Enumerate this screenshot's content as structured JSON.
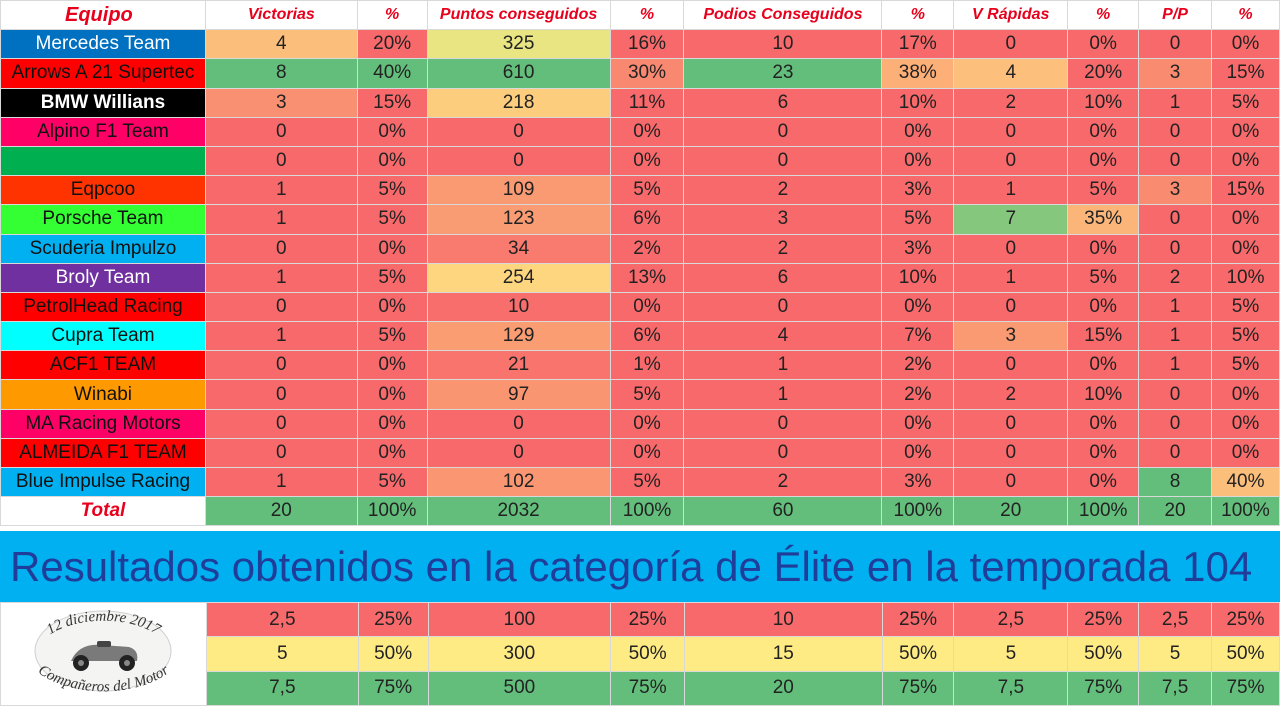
{
  "headers": [
    "Equipo",
    "Victorias",
    "%",
    "Puntos conseguidos",
    "%",
    "Podios Conseguidos",
    "%",
    "V Rápidas",
    "%",
    "P/P",
    "%"
  ],
  "colors": {
    "red": "#f8696b",
    "light_red": "#f98970",
    "salmon": "#fa9a72",
    "orange": "#fcaf77",
    "light_orange": "#fcc07c",
    "peach": "#fdcd7e",
    "yellow": "#fee382",
    "light_green": "#b5d57f",
    "green": "#63be7b",
    "mid_green": "#85c87d",
    "banner": "#00b0f0"
  },
  "rows": [
    {
      "team": "Mercedes Team",
      "team_bg": "#0070c0",
      "team_fg": "#ffffff",
      "cells": [
        "4",
        "20%",
        "325",
        "16%",
        "10",
        "17%",
        "0",
        "0%",
        "0",
        "0%"
      ],
      "fills": [
        "#fcbf7b",
        "#f8696b",
        "#e9e583",
        "#f8696b",
        "#f8696b",
        "#f8696b",
        "#f8696b",
        "#f8696b",
        "#f8696b",
        "#f8696b"
      ]
    },
    {
      "team": "Arrows A 21 Supertec",
      "team_bg": "#ff0000",
      "team_fg": "#111111",
      "cells": [
        "8",
        "40%",
        "610",
        "30%",
        "23",
        "38%",
        "4",
        "20%",
        "3",
        "15%"
      ],
      "fills": [
        "#63be7b",
        "#63be7b",
        "#63be7b",
        "#f98870",
        "#63be7b",
        "#fcaf77",
        "#fcc07c",
        "#f8696b",
        "#f98b70",
        "#f8696b"
      ]
    },
    {
      "team": "BMW Willians",
      "team_bg": "#000000",
      "team_fg": "#ffffff",
      "team_bold": true,
      "cells": [
        "3",
        "15%",
        "218",
        "11%",
        "6",
        "10%",
        "2",
        "10%",
        "1",
        "5%"
      ],
      "fills": [
        "#fa9072",
        "#f8696b",
        "#fdcd7e",
        "#f8696b",
        "#f8696b",
        "#f8696b",
        "#f8696b",
        "#f8696b",
        "#f8696b",
        "#f8696b"
      ]
    },
    {
      "team": "Alpino F1 Team",
      "team_bg": "#ff0066",
      "team_fg": "#111111",
      "cells": [
        "0",
        "0%",
        "0",
        "0%",
        "0",
        "0%",
        "0",
        "0%",
        "0",
        "0%"
      ],
      "fills": [
        "#f8696b",
        "#f8696b",
        "#f8696b",
        "#f8696b",
        "#f8696b",
        "#f8696b",
        "#f8696b",
        "#f8696b",
        "#f8696b",
        "#f8696b"
      ]
    },
    {
      "team": "",
      "team_bg": "#00b050",
      "team_fg": "#111111",
      "cells": [
        "0",
        "0%",
        "0",
        "0%",
        "0",
        "0%",
        "0",
        "0%",
        "0",
        "0%"
      ],
      "fills": [
        "#f8696b",
        "#f8696b",
        "#f8696b",
        "#f8696b",
        "#f8696b",
        "#f8696b",
        "#f8696b",
        "#f8696b",
        "#f8696b",
        "#f8696b"
      ]
    },
    {
      "team": "Eqpcoo",
      "team_bg": "#ff3300",
      "team_fg": "#111111",
      "cells": [
        "1",
        "5%",
        "109",
        "5%",
        "2",
        "3%",
        "1",
        "5%",
        "3",
        "15%"
      ],
      "fills": [
        "#f8696b",
        "#f8696b",
        "#fa9a72",
        "#f8696b",
        "#f8696b",
        "#f8696b",
        "#f8696b",
        "#f8696b",
        "#f98b70",
        "#f8696b"
      ]
    },
    {
      "team": "Porsche Team",
      "team_bg": "#33ff33",
      "team_fg": "#111111",
      "cells": [
        "1",
        "5%",
        "123",
        "6%",
        "3",
        "5%",
        "7",
        "35%",
        "0",
        "0%"
      ],
      "fills": [
        "#f8696b",
        "#f8696b",
        "#fa9c73",
        "#f8696b",
        "#f8696b",
        "#f8696b",
        "#85c87d",
        "#fcb579",
        "#f8696b",
        "#f8696b"
      ]
    },
    {
      "team": "Scuderia Impulzo",
      "team_bg": "#00b0f0",
      "team_fg": "#111111",
      "cells": [
        "0",
        "0%",
        "34",
        "2%",
        "2",
        "3%",
        "0",
        "0%",
        "0",
        "0%"
      ],
      "fills": [
        "#f8696b",
        "#f8696b",
        "#f97a6e",
        "#f8696b",
        "#f8696b",
        "#f8696b",
        "#f8696b",
        "#f8696b",
        "#f8696b",
        "#f8696b"
      ]
    },
    {
      "team": "Broly Team",
      "team_bg": "#7030a0",
      "team_fg": "#ffffff",
      "cells": [
        "1",
        "5%",
        "254",
        "13%",
        "6",
        "10%",
        "1",
        "5%",
        "2",
        "10%"
      ],
      "fills": [
        "#f8696b",
        "#f8696b",
        "#fed680",
        "#f8696b",
        "#f8696b",
        "#f8696b",
        "#f8696b",
        "#f8696b",
        "#f8696b",
        "#f8696b"
      ]
    },
    {
      "team": "PetrolHead Racing",
      "team_bg": "#ff0000",
      "team_fg": "#111111",
      "cells": [
        "0",
        "0%",
        "10",
        "0%",
        "0",
        "0%",
        "0",
        "0%",
        "1",
        "5%"
      ],
      "fills": [
        "#f8696b",
        "#f8696b",
        "#f86e6c",
        "#f8696b",
        "#f8696b",
        "#f8696b",
        "#f8696b",
        "#f8696b",
        "#f8696b",
        "#f8696b"
      ]
    },
    {
      "team": "Cupra Team",
      "team_bg": "#00ffff",
      "team_fg": "#111111",
      "cells": [
        "1",
        "5%",
        "129",
        "6%",
        "4",
        "7%",
        "3",
        "15%",
        "1",
        "5%"
      ],
      "fills": [
        "#f8696b",
        "#f8696b",
        "#fa9d73",
        "#f8696b",
        "#f8696b",
        "#f8696b",
        "#fa9a72",
        "#f8696b",
        "#f8696b",
        "#f8696b"
      ]
    },
    {
      "team": "ACF1 TEAM",
      "team_bg": "#ff0000",
      "team_fg": "#111111",
      "cells": [
        "0",
        "0%",
        "21",
        "1%",
        "1",
        "2%",
        "0",
        "0%",
        "1",
        "5%"
      ],
      "fills": [
        "#f8696b",
        "#f8696b",
        "#f9746d",
        "#f8696b",
        "#f8696b",
        "#f8696b",
        "#f8696b",
        "#f8696b",
        "#f8696b",
        "#f8696b"
      ]
    },
    {
      "team": "Winabi",
      "team_bg": "#ff9900",
      "team_fg": "#111111",
      "cells": [
        "0",
        "0%",
        "97",
        "5%",
        "1",
        "2%",
        "2",
        "10%",
        "0",
        "0%"
      ],
      "fills": [
        "#f8696b",
        "#f8696b",
        "#fa9572",
        "#f8696b",
        "#f8696b",
        "#f8696b",
        "#f8696b",
        "#f8696b",
        "#f8696b",
        "#f8696b"
      ]
    },
    {
      "team": "MA Racing Motors",
      "team_bg": "#ff0066",
      "team_fg": "#111111",
      "cells": [
        "0",
        "0%",
        "0",
        "0%",
        "0",
        "0%",
        "0",
        "0%",
        "0",
        "0%"
      ],
      "fills": [
        "#f8696b",
        "#f8696b",
        "#f8696b",
        "#f8696b",
        "#f8696b",
        "#f8696b",
        "#f8696b",
        "#f8696b",
        "#f8696b",
        "#f8696b"
      ]
    },
    {
      "team": "ALMEIDA F1 TEAM",
      "team_bg": "#ff0000",
      "team_fg": "#111111",
      "cells": [
        "0",
        "0%",
        "0",
        "0%",
        "0",
        "0%",
        "0",
        "0%",
        "0",
        "0%"
      ],
      "fills": [
        "#f8696b",
        "#f8696b",
        "#f8696b",
        "#f8696b",
        "#f8696b",
        "#f8696b",
        "#f8696b",
        "#f8696b",
        "#f8696b",
        "#f8696b"
      ]
    },
    {
      "team": "Blue Impulse Racing",
      "team_bg": "#00b0f0",
      "team_fg": "#111111",
      "cells": [
        "1",
        "5%",
        "102",
        "5%",
        "2",
        "3%",
        "0",
        "0%",
        "8",
        "40%"
      ],
      "fills": [
        "#f8696b",
        "#f8696b",
        "#fa9772",
        "#f8696b",
        "#f8696b",
        "#f8696b",
        "#f8696b",
        "#f8696b",
        "#63be7b",
        "#fcbf7b"
      ]
    }
  ],
  "total": {
    "label": "Total",
    "cells": [
      "20",
      "100%",
      "2032",
      "100%",
      "60",
      "100%",
      "20",
      "100%",
      "20",
      "100%"
    ]
  },
  "banner": "Resultados obtenidos en la categoría de Élite en la temporada 104",
  "reference": [
    {
      "fill": "#f8696b",
      "cells": [
        "2,5",
        "25%",
        "100",
        "25%",
        "10",
        "25%",
        "2,5",
        "25%",
        "2,5",
        "25%"
      ]
    },
    {
      "fill": "#ffeb84",
      "cells": [
        "5",
        "50%",
        "300",
        "50%",
        "15",
        "50%",
        "5",
        "50%",
        "5",
        "50%"
      ]
    },
    {
      "fill": "#63be7b",
      "cells": [
        "7,5",
        "75%",
        "500",
        "75%",
        "20",
        "75%",
        "7,5",
        "75%",
        "7,5",
        "75%"
      ]
    }
  ],
  "logo": {
    "top_text": "12 diciembre 2017",
    "bottom_text": "Compañeros del Motor"
  }
}
